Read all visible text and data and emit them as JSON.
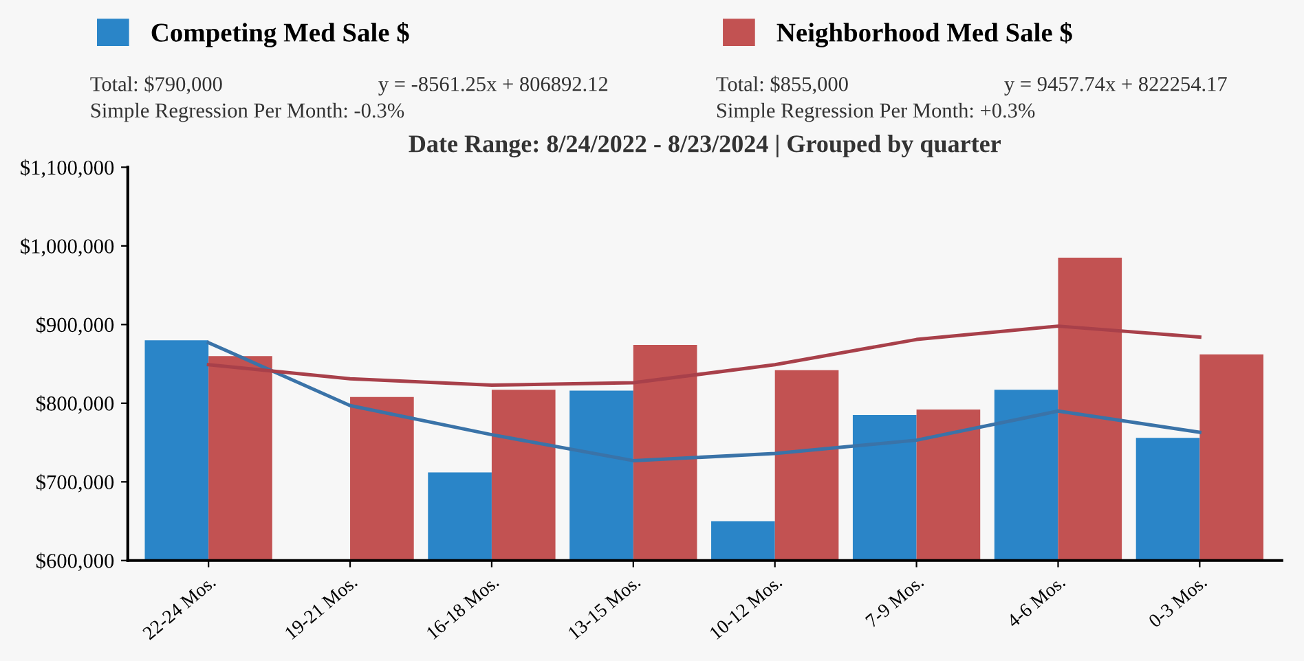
{
  "chart_data": {
    "type": "bar",
    "title": "Date Range: 8/24/2022 - 8/23/2024 | Grouped by quarter",
    "categories": [
      "22-24 Mos.",
      "19-21 Mos.",
      "16-18 Mos.",
      "13-15 Mos.",
      "10-12 Mos.",
      "7-9 Mos.",
      "4-6 Mos.",
      "0-3 Mos."
    ],
    "series": [
      {
        "name": "Competing Med Sale $",
        "color": "#2a85c8",
        "values": [
          880000,
          null,
          712000,
          816000,
          650000,
          785000,
          817000,
          756000
        ]
      },
      {
        "name": "Neighborhood Med Sale $",
        "color": "#c25252",
        "values": [
          860000,
          808000,
          817000,
          874000,
          842000,
          792000,
          985000,
          862000
        ]
      },
      {
        "type": "line",
        "color": "#3a73a8",
        "values": [
          877000,
          797000,
          760000,
          727000,
          736000,
          753000,
          790000,
          763000
        ]
      },
      {
        "type": "line",
        "color": "#a8404a",
        "values": [
          849000,
          831000,
          823000,
          826000,
          849000,
          881000,
          898000,
          884000
        ]
      }
    ],
    "ylim": [
      600000,
      1100000
    ],
    "yticks": [
      {
        "value": 600000,
        "label": "$600,000"
      },
      {
        "value": 700000,
        "label": "$700,000"
      },
      {
        "value": 800000,
        "label": "$800,000"
      },
      {
        "value": 900000,
        "label": "$900,000"
      },
      {
        "value": 1000000,
        "label": "$1,000,000"
      },
      {
        "value": 1100000,
        "label": "$1,100,000"
      }
    ],
    "grid": false,
    "legend": "top",
    "annotations": [
      "Total: $790,000",
      "y = -8561.25x + 806892.12",
      "Simple Regression Per Month: -0.3%",
      "Total: $855,000",
      "y = 9457.74x + 822254.17",
      "Simple Regression Per Month: +0.3%"
    ]
  }
}
